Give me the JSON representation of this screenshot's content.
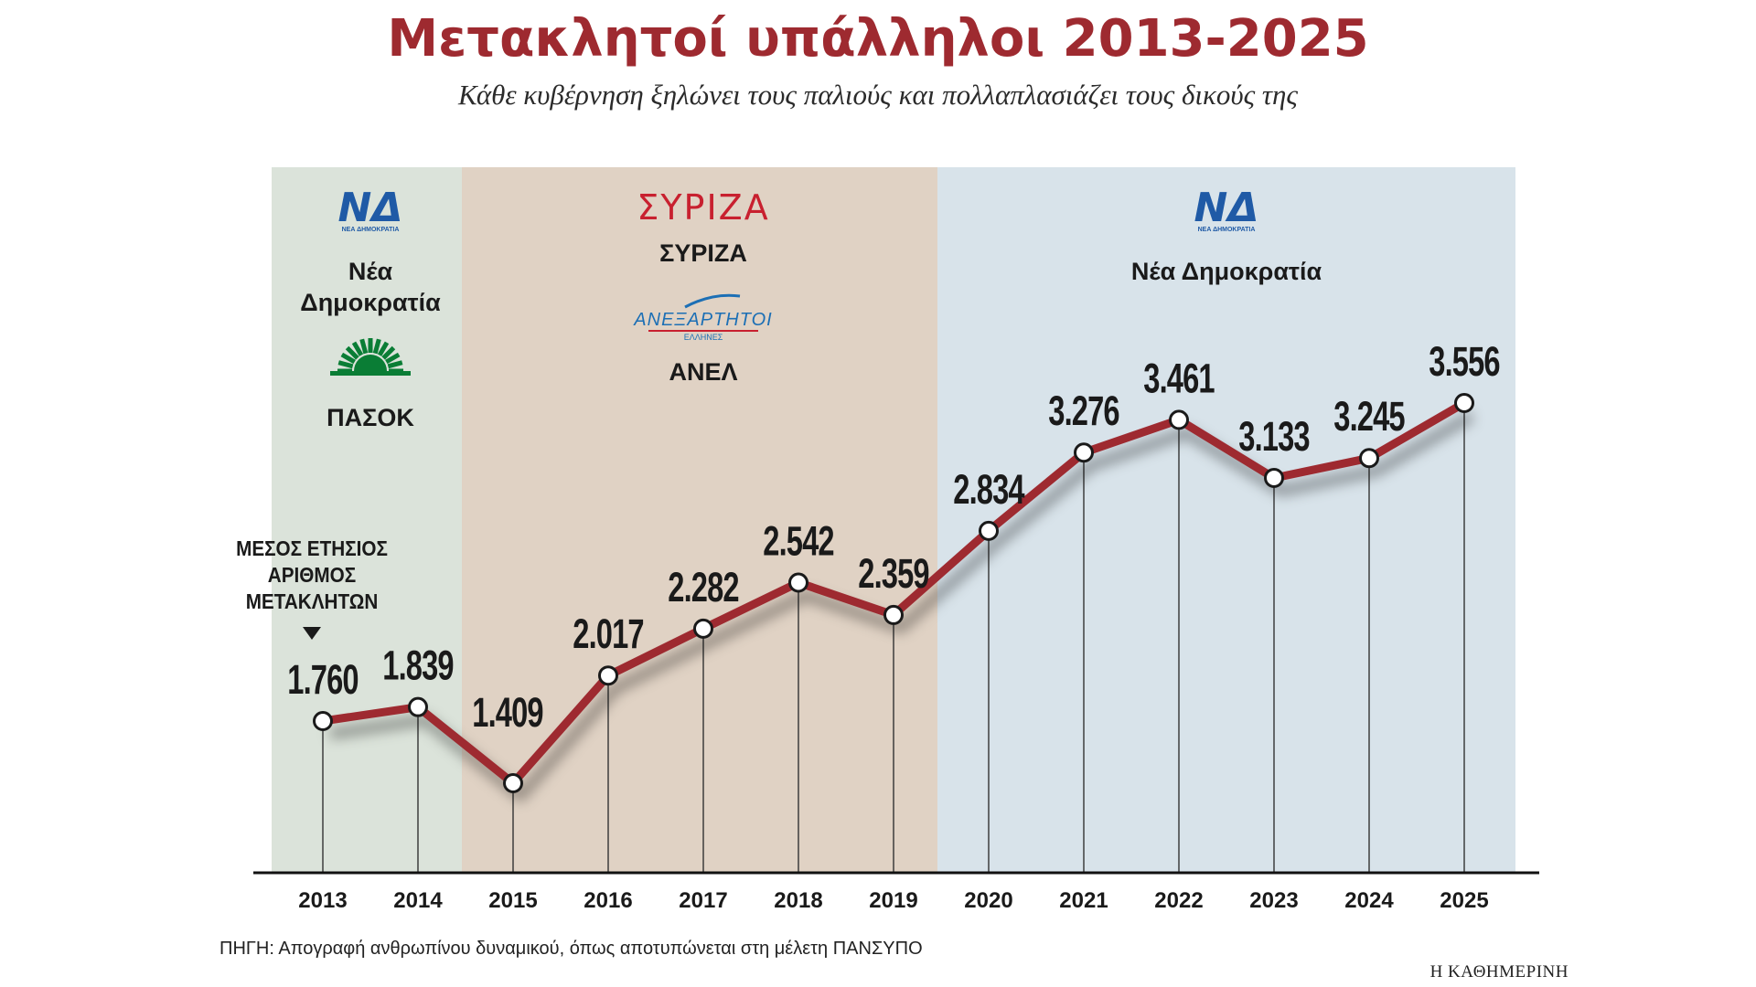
{
  "title": "Μετακλητοί υπάλληλοι 2013-2025",
  "subtitle": "Κάθε κυβέρνηση ξηλώνει τους παλιούς και πολλαπλασιάζει τους δικούς της",
  "source": "ΠΗΓΗ: Απογραφή ανθρωπίνου δυναμικού, όπως αποτυπώνεται στη μέλετη ΠΑΝΣΥΠΟ",
  "brand": "Η ΚΑΘΗΜΕΡΙΝΗ",
  "annotation": [
    "ΜΕΣΟΣ ΕΤΗΣΙΟΣ",
    "ΑΡΙΘΜΟΣ",
    "ΜΕΤΑΚΛΗΤΩΝ"
  ],
  "colors": {
    "title": "#9e2a30",
    "line": "#9e2a30",
    "period_nd1": "#dbe3da",
    "period_syriza": "#e0d2c4",
    "period_nd2": "#d8e3ea",
    "nd_blue": "#1f5aa6",
    "pasok_green": "#0a7d35",
    "syriza_red": "#c8202f",
    "anel_blue": "#1c6fb5"
  },
  "periods": [
    {
      "id": "nd1",
      "from_year": 2013,
      "to_year": 2014,
      "parties": [
        {
          "logo": "nd-logo",
          "logo_text": "ΝΔ",
          "logo_sub": "ΝΕΑ ΔΗΜΟΚΡΑΤΙΑ",
          "label": [
            "Νέα",
            "Δημοκρατία"
          ]
        },
        {
          "logo": "pasok-sun-logo",
          "label": [
            "ΠΑΣΟΚ"
          ]
        }
      ]
    },
    {
      "id": "syriza",
      "from_year": 2015,
      "to_year": 2019,
      "parties": [
        {
          "logo": "syriza-logo",
          "logo_text": "ΣΥΡΙΖΑ",
          "label": [
            "ΣΥΡΙΖΑ"
          ]
        },
        {
          "logo": "anel-logo",
          "logo_text": "ΑΝΕΞΑΡΤΗΤΟΙ",
          "logo_sub": "ΕΛΛΗΝΕΣ",
          "label": [
            "ΑΝΕΛ"
          ]
        }
      ]
    },
    {
      "id": "nd2",
      "from_year": 2020,
      "to_year": 2025,
      "parties": [
        {
          "logo": "nd-logo",
          "logo_text": "ΝΔ",
          "logo_sub": "ΝΕΑ ΔΗΜΟΚΡΑΤΙΑ",
          "label": [
            "Νέα Δημοκρατία"
          ]
        }
      ]
    }
  ],
  "chart_data": {
    "type": "line",
    "title": "Μετακλητοί υπάλληλοι 2013-2025",
    "xlabel": "",
    "ylabel": "ΜΕΣΟΣ ΕΤΗΣΙΟΣ ΑΡΙΘΜΟΣ ΜΕΤΑΚΛΗΤΩΝ",
    "x": [
      2013,
      2014,
      2015,
      2016,
      2017,
      2018,
      2019,
      2020,
      2021,
      2022,
      2023,
      2024,
      2025
    ],
    "values": [
      1760,
      1839,
      1409,
      2017,
      2282,
      2542,
      2359,
      2834,
      3276,
      3461,
      3133,
      3245,
      3556
    ],
    "value_labels": [
      "1.760",
      "1.839",
      "1.409",
      "2.017",
      "2.282",
      "2.542",
      "2.359",
      "2.834",
      "3.276",
      "3.461",
      "3.133",
      "3.245",
      "3.556"
    ],
    "grid": false,
    "legend": "none"
  }
}
